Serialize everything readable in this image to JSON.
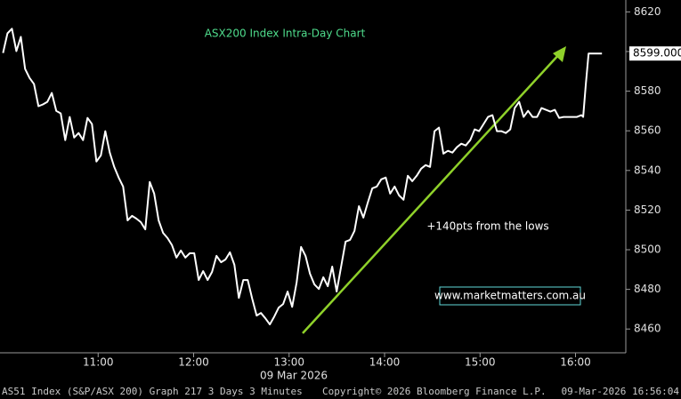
{
  "chart_data": {
    "type": "line",
    "title": "ASX200 Index Intra-Day Chart",
    "annotation": "+140pts from the lows",
    "watermark": "www.marketmatters.com.au",
    "date_label": "09 Mar 2026",
    "footer": {
      "left": "AS51 Index (S&P/ASX 200) Graph 217 3 Days 3 Minutes",
      "center": "Copyright© 2026 Bloomberg Finance L.P.",
      "right": "09-Mar-2026 16:56:04"
    },
    "current_price": {
      "value": 8599,
      "label": "8599.000"
    },
    "series": [
      {
        "color": "#ffffff",
        "x": [
          600.2,
          603.0,
          605.8,
          608.6,
          611.4,
          614.1,
          616.9,
          619.7,
          622.5,
          625.3,
          628.1,
          630.9,
          633.7,
          636.5,
          639.3,
          642.1,
          644.9,
          647.7,
          650.5,
          653.3,
          656.1,
          658.9,
          661.7,
          664.5,
          667.3,
          670.1,
          672.9,
          675.7,
          678.5,
          681.3,
          684.0,
          686.8,
          689.6,
          692.4,
          695.2,
          698.0,
          700.8,
          703.6,
          706.4,
          709.2,
          712.0,
          714.8,
          717.6,
          720.4,
          723.2,
          726.0,
          728.8,
          731.6,
          734.4,
          737.2,
          740.0,
          742.8,
          745.6,
          748.4,
          751.2,
          754.0,
          756.8,
          759.6,
          762.3,
          765.1,
          767.9,
          770.7,
          773.5,
          776.3,
          779.1,
          781.9,
          784.7,
          787.5,
          790.3,
          793.1,
          795.9,
          798.7,
          801.5,
          804.3,
          807.1,
          809.9,
          812.7,
          815.5,
          818.3,
          821.1,
          823.9,
          826.7,
          829.5,
          832.3,
          835.1,
          837.9,
          840.7,
          843.5,
          846.3,
          849.1,
          851.9,
          854.6,
          857.4,
          860.2,
          863.0,
          865.8,
          868.6,
          871.4,
          874.2,
          877.0,
          879.8,
          882.6,
          885.4,
          888.2,
          891.0,
          893.8,
          896.6,
          899.4,
          902.2,
          905.0,
          907.8,
          910.6,
          913.4,
          916.2,
          919.0,
          921.8,
          924.6,
          927.4,
          930.2,
          933.0,
          935.8,
          938.6,
          941.4,
          944.2,
          947.0,
          949.7,
          952.5,
          955.3,
          958.1,
          960.9,
          963.7,
          964.8,
          966.5,
          968.2,
          976.6
        ],
        "values": [
          8599.3,
          8609.2,
          8611.5,
          8600.2,
          8607.4,
          8591.2,
          8586.7,
          8583.6,
          8572.4,
          8573.3,
          8574.6,
          8579.1,
          8570.1,
          8568.8,
          8555.3,
          8567.0,
          8556.6,
          8558.9,
          8555.3,
          8566.5,
          8563.4,
          8544.5,
          8547.6,
          8559.8,
          8549.0,
          8541.8,
          8536.4,
          8531.9,
          8514.8,
          8517.1,
          8515.7,
          8513.9,
          8510.3,
          8534.2,
          8528.3,
          8514.8,
          8508.5,
          8505.9,
          8502.3,
          8496.0,
          8499.6,
          8496.0,
          8498.2,
          8498.2,
          8484.7,
          8489.2,
          8484.7,
          8488.8,
          8496.9,
          8493.7,
          8495.1,
          8498.7,
          8492.4,
          8475.7,
          8484.7,
          8484.7,
          8475.3,
          8466.8,
          8468.1,
          8465.4,
          8462.3,
          8466.3,
          8470.8,
          8472.6,
          8478.9,
          8471.2,
          8483.4,
          8501.4,
          8496.9,
          8487.9,
          8482.5,
          8480.2,
          8486.1,
          8481.6,
          8491.5,
          8478.9,
          8491.5,
          8504.1,
          8505.0,
          8509.5,
          8522.0,
          8516.2,
          8523.8,
          8531.0,
          8531.9,
          8535.5,
          8536.4,
          8528.3,
          8531.9,
          8527.4,
          8525.2,
          8537.3,
          8534.6,
          8537.3,
          8540.9,
          8542.7,
          8541.8,
          8559.8,
          8561.6,
          8548.5,
          8549.9,
          8549.0,
          8551.7,
          8553.5,
          8552.6,
          8555.3,
          8560.7,
          8559.8,
          8563.4,
          8567.0,
          8567.9,
          8559.8,
          8559.8,
          8558.9,
          8560.7,
          8571.5,
          8574.6,
          8567.0,
          8570.1,
          8567.0,
          8567.0,
          8571.5,
          8570.6,
          8569.7,
          8570.6,
          8566.5,
          8567.0,
          8567.0,
          8567.0,
          8567.0,
          8567.9,
          8567.0,
          8583.6,
          8599,
          8599
        ]
      }
    ],
    "xlim": [
      600,
      991.6
    ],
    "xticks": [
      {
        "value": 660,
        "label": "11:00"
      },
      {
        "value": 720,
        "label": "12:00"
      },
      {
        "value": 780,
        "label": "13:00"
      },
      {
        "value": 840,
        "label": "14:00"
      },
      {
        "value": 900,
        "label": "15:00"
      },
      {
        "value": 960,
        "label": "16:00"
      }
    ],
    "ylim": [
      8448,
      8626
    ],
    "yticks": [
      8460,
      8480,
      8500,
      8520,
      8540,
      8560,
      8580,
      8600,
      8620
    ],
    "grid": false
  }
}
